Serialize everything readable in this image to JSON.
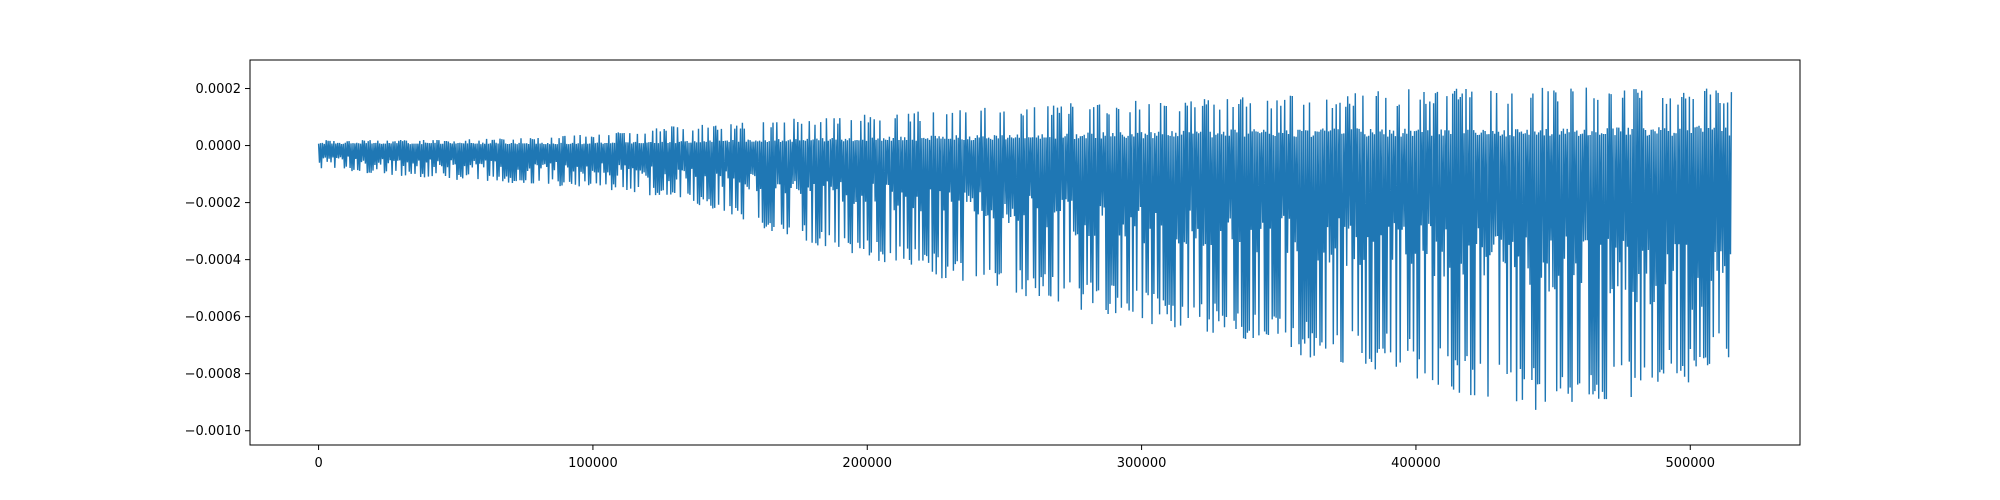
{
  "chart_data": {
    "type": "line",
    "title": "",
    "xlabel": "",
    "ylabel": "",
    "xlim": [
      -25000,
      540000
    ],
    "ylim": [
      -0.00105,
      0.0003
    ],
    "x_ticks": [
      0,
      100000,
      200000,
      300000,
      400000,
      500000
    ],
    "x_tick_labels": [
      "0",
      "100000",
      "200000",
      "300000",
      "400000",
      "500000"
    ],
    "y_ticks": [
      0.0002,
      0.0,
      -0.0002,
      -0.0004,
      -0.0006,
      -0.0008,
      -0.001
    ],
    "y_tick_labels": [
      "0.0002",
      "0.0000",
      "−0.0002",
      "−0.0004",
      "−0.0006",
      "−0.0008",
      "−0.0010"
    ],
    "grid": false,
    "series": [
      {
        "color": "#1f77b4",
        "x_range": [
          0,
          515000
        ],
        "envelope": {
          "x": [
            0,
            20000,
            50000,
            100000,
            130000,
            150000,
            180000,
            200000,
            250000,
            300000,
            350000,
            400000,
            430000,
            450000,
            480000,
            500000,
            515000
          ],
          "upper": [
            2e-05,
            2e-05,
            2e-05,
            4e-05,
            7e-05,
            8e-05,
            0.0001,
            0.00011,
            0.00014,
            0.00016,
            0.00018,
            0.0002,
            0.0002,
            0.00021,
            0.0002,
            0.0002,
            0.0002
          ],
          "lower": [
            -8e-05,
            -0.0001,
            -0.00012,
            -0.00015,
            -0.00019,
            -0.00025,
            -0.00035,
            -0.0004,
            -0.00052,
            -0.00062,
            -0.00072,
            -0.00082,
            -0.00091,
            -0.00094,
            -0.00088,
            -0.00085,
            -0.00077
          ]
        },
        "dense_band": {
          "x": [
            0,
            100000,
            150000,
            200000,
            250000,
            300000,
            350000,
            400000,
            450000,
            500000,
            515000
          ],
          "upper": [
            1e-05,
            1e-05,
            2e-05,
            3e-05,
            4e-05,
            5e-05,
            6e-05,
            6e-05,
            6e-05,
            7e-05,
            7e-05
          ],
          "lower": [
            -6e-05,
            -0.0001,
            -0.00015,
            -0.00022,
            -0.00028,
            -0.00035,
            -0.0004,
            -0.00045,
            -0.00052,
            -0.00058,
            -0.0006
          ]
        }
      }
    ]
  }
}
